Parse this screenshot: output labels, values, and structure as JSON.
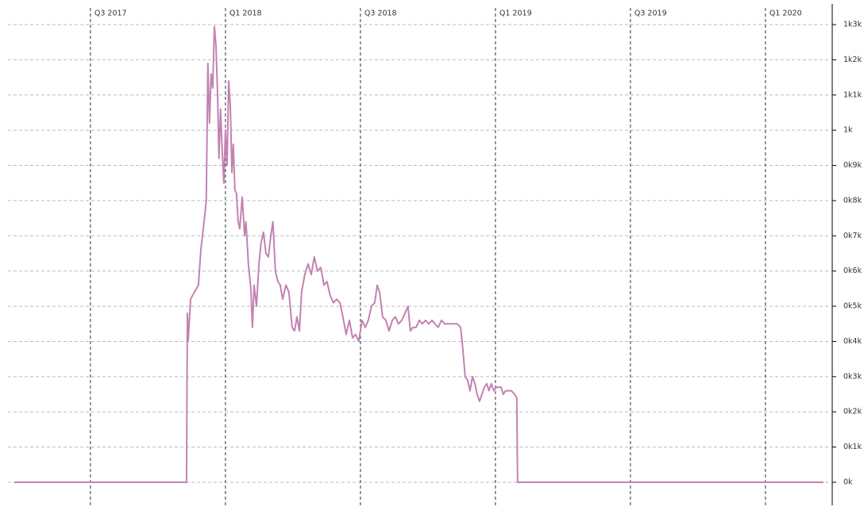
{
  "chart_data": {
    "type": "line",
    "x": [
      2017.218,
      2017.856,
      2017.859,
      2017.862,
      2017.871,
      2017.885,
      2017.9,
      2017.909,
      2017.921,
      2017.929,
      2017.935,
      2017.941,
      2017.947,
      2017.953,
      2017.959,
      2017.965,
      2017.971,
      2017.976,
      2017.982,
      2017.988,
      2017.994,
      2018.0,
      2018.006,
      2018.012,
      2018.018,
      2018.024,
      2018.029,
      2018.035,
      2018.041,
      2018.047,
      2018.053,
      2018.062,
      2018.071,
      2018.076,
      2018.085,
      2018.094,
      2018.1,
      2018.106,
      2018.115,
      2018.124,
      2018.132,
      2018.141,
      2018.15,
      2018.159,
      2018.168,
      2018.176,
      2018.185,
      2018.194,
      2018.203,
      2018.212,
      2018.224,
      2018.235,
      2018.247,
      2018.256,
      2018.265,
      2018.274,
      2018.282,
      2018.294,
      2018.306,
      2018.318,
      2018.329,
      2018.341,
      2018.353,
      2018.365,
      2018.376,
      2018.388,
      2018.4,
      2018.412,
      2018.424,
      2018.435,
      2018.447,
      2018.459,
      2018.471,
      2018.482,
      2018.494,
      2018.506,
      2018.518,
      2018.529,
      2018.541,
      2018.553,
      2018.562,
      2018.571,
      2018.582,
      2018.594,
      2018.606,
      2018.618,
      2018.629,
      2018.641,
      2018.653,
      2018.665,
      2018.676,
      2018.685,
      2018.694,
      2018.706,
      2018.718,
      2018.729,
      2018.741,
      2018.753,
      2018.765,
      2018.776,
      2018.788,
      2018.8,
      2018.812,
      2018.824,
      2018.835,
      2018.847,
      2018.859,
      2018.871,
      2018.879,
      2018.888,
      2018.897,
      2018.906,
      2018.915,
      2018.924,
      2018.932,
      2018.941,
      2018.95,
      2018.959,
      2018.968,
      2018.976,
      2018.985,
      2018.994,
      2019.003,
      2019.012,
      2019.021,
      2019.029,
      2019.038,
      2019.047,
      2019.059,
      2019.071,
      2019.079,
      2019.082,
      2020.215
    ],
    "values": [
      0,
      0,
      480,
      400,
      520,
      540,
      560,
      660,
      740,
      800,
      1190,
      1020,
      1160,
      1120,
      1295,
      1240,
      1100,
      920,
      1060,
      940,
      850,
      1000,
      900,
      1140,
      1070,
      880,
      960,
      830,
      820,
      740,
      720,
      810,
      700,
      740,
      620,
      550,
      440,
      560,
      500,
      620,
      680,
      710,
      650,
      640,
      700,
      740,
      600,
      570,
      560,
      520,
      560,
      540,
      440,
      430,
      470,
      430,
      540,
      590,
      620,
      590,
      640,
      600,
      610,
      560,
      570,
      530,
      510,
      520,
      510,
      470,
      420,
      460,
      410,
      420,
      400,
      460,
      440,
      460,
      500,
      510,
      560,
      540,
      470,
      460,
      430,
      460,
      470,
      450,
      460,
      480,
      500,
      430,
      440,
      440,
      460,
      450,
      460,
      450,
      460,
      450,
      440,
      460,
      450,
      450,
      450,
      450,
      450,
      440,
      380,
      300,
      290,
      260,
      300,
      280,
      250,
      230,
      250,
      270,
      280,
      260,
      280,
      260,
      270,
      270,
      270,
      250,
      260,
      260,
      260,
      250,
      240,
      0,
      0
    ],
    "color": "#c382b1",
    "xlim": [
      2017.218,
      2020.215
    ],
    "xticks": [
      {
        "value": 2017.5,
        "label": "Q3 2017"
      },
      {
        "value": 2018.0,
        "label": "Q1 2018"
      },
      {
        "value": 2018.5,
        "label": "Q3 2018"
      },
      {
        "value": 2019.0,
        "label": "Q1 2019"
      },
      {
        "value": 2019.5,
        "label": "Q3 2019"
      },
      {
        "value": 2020.0,
        "label": "Q1 2020"
      }
    ],
    "ylim": [
      0,
      1300
    ],
    "yticks": [
      {
        "value": 0,
        "label": "0k"
      },
      {
        "value": 100,
        "label": "0k1k"
      },
      {
        "value": 200,
        "label": "0k2k"
      },
      {
        "value": 300,
        "label": "0k3k"
      },
      {
        "value": 400,
        "label": "0k4k"
      },
      {
        "value": 500,
        "label": "0k5k"
      },
      {
        "value": 600,
        "label": "0k6k"
      },
      {
        "value": 700,
        "label": "0k7k"
      },
      {
        "value": 800,
        "label": "0k8k"
      },
      {
        "value": 900,
        "label": "0k9k"
      },
      {
        "value": 1000,
        "label": "1k"
      },
      {
        "value": 1100,
        "label": "1k1k"
      },
      {
        "value": 1200,
        "label": "1k2k"
      },
      {
        "value": 1300,
        "label": "1k3k"
      }
    ],
    "grid": true
  }
}
